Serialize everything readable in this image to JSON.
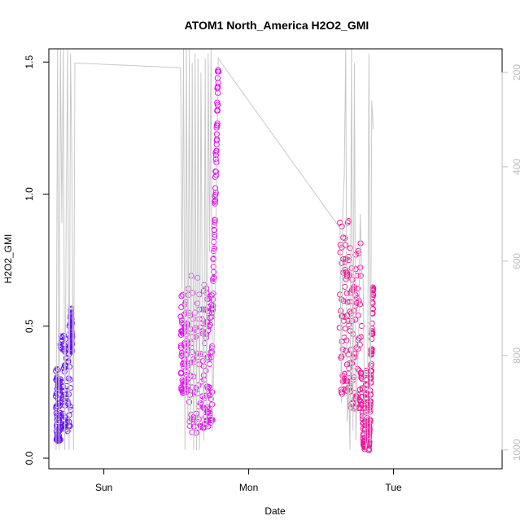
{
  "chart_data": {
    "type": "scatter",
    "title": "ATOM1 North_America H2O2_GMI",
    "xlabel": "Date",
    "ylabel": "H2O2_GMI",
    "x_ticks": [
      "Sun",
      "Mon",
      "Tue"
    ],
    "x_range_days": [
      -0.38,
      2.75
    ],
    "ylim": [
      -0.04,
      1.55
    ],
    "y_ticks": [
      0.0,
      0.5,
      1.0,
      1.5
    ],
    "y2_ticks": [
      200,
      400,
      600,
      800,
      1000
    ],
    "y2_range": [
      1040,
      150
    ],
    "grid": false,
    "legend": "none",
    "series": [
      {
        "kind": "points",
        "color": "#6a14f2",
        "segments": [
          {
            "x": [
              -0.33,
              -0.3
            ],
            "y": [
              0.03,
              0.35
            ],
            "pattern": "zigzag"
          },
          {
            "x": [
              -0.3,
              -0.23
            ],
            "y": [
              0.05,
              0.52
            ],
            "pattern": "zigzag"
          },
          {
            "x": [
              -0.23,
              -0.22
            ],
            "y": [
              0.38,
              0.57
            ],
            "pattern": "zigzag"
          }
        ]
      },
      {
        "kind": "points",
        "color": "#e312f1",
        "segments": [
          {
            "x": [
              0.53,
              0.58
            ],
            "y": [
              0.2,
              0.62
            ],
            "pattern": "zigzag"
          },
          {
            "x": [
              0.58,
              0.69
            ],
            "y": [
              0.02,
              0.7
            ],
            "pattern": "zigzag"
          },
          {
            "x": [
              0.69,
              0.75
            ],
            "y": [
              0.05,
              0.68
            ],
            "pattern": "zigzag"
          },
          {
            "x": [
              0.75,
              0.79
            ],
            "y": [
              0.55,
              1.49
            ],
            "pattern": "rise"
          }
        ]
      },
      {
        "kind": "points",
        "color": "#f0159c",
        "segments": [
          {
            "x": [
              1.63,
              1.7
            ],
            "y": [
              0.15,
              0.94
            ],
            "pattern": "zigzag"
          },
          {
            "x": [
              1.7,
              1.78
            ],
            "y": [
              0.1,
              0.84
            ],
            "pattern": "zigzag"
          },
          {
            "x": [
              1.78,
              1.83
            ],
            "y": [
              0.03,
              0.35
            ],
            "pattern": "valley"
          },
          {
            "x": [
              1.83,
              1.86
            ],
            "y": [
              0.03,
              0.66
            ],
            "pattern": "rise"
          }
        ]
      },
      {
        "kind": "line",
        "color": "#c8c8c8",
        "axis": "right",
        "x": [
          -0.33,
          -0.32,
          -0.31,
          -0.3,
          -0.29,
          -0.28,
          -0.27,
          -0.26,
          -0.25,
          -0.24,
          -0.23,
          -0.22,
          -0.21,
          -0.2,
          0.53,
          0.54,
          0.55,
          0.56,
          0.57,
          0.58,
          0.59,
          0.6,
          0.61,
          0.62,
          0.63,
          0.64,
          0.65,
          0.66,
          0.67,
          0.68,
          0.69,
          0.7,
          0.71,
          0.72,
          0.73,
          0.74,
          0.75,
          0.77,
          0.79,
          0.8,
          1.63,
          1.64,
          1.65,
          1.66,
          1.67,
          1.68,
          1.69,
          1.7,
          1.71,
          1.72,
          1.73,
          1.74,
          1.75,
          1.76,
          1.77,
          1.78,
          1.79,
          1.8,
          1.81,
          1.82,
          1.83,
          1.84,
          1.85,
          1.86
        ],
        "y": [
          1000,
          150,
          1000,
          150,
          520,
          150,
          1000,
          500,
          150,
          1000,
          160,
          420,
          1000,
          180,
          190,
          660,
          150,
          1000,
          150,
          950,
          150,
          960,
          180,
          1000,
          160,
          1000,
          170,
          1000,
          200,
          700,
          980,
          170,
          960,
          160,
          580,
          150,
          960,
          620,
          170,
          175,
          530,
          900,
          500,
          420,
          150,
          940,
          860,
          1000,
          150,
          960,
          180,
          980,
          840,
          760,
          500,
          620,
          640,
          900,
          1000,
          980,
          160,
          990,
          260,
          320
        ]
      }
    ]
  }
}
